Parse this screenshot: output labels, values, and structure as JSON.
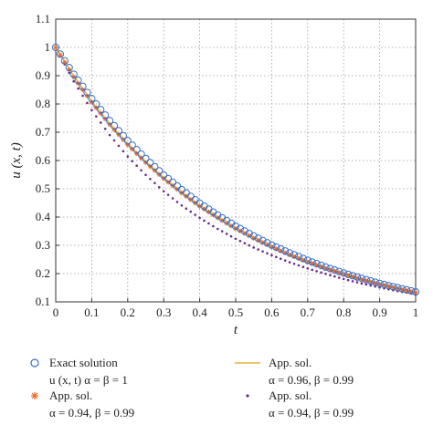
{
  "chart_data": {
    "type": "line",
    "xlabel": "t",
    "ylabel": "u (x, t)",
    "xlim": [
      0,
      1
    ],
    "ylim": [
      0.1,
      1.1
    ],
    "x_ticks": [
      "0",
      "0.1",
      "0.2",
      "0.3",
      "0.4",
      "0.5",
      "0.6",
      "0.7",
      "0.8",
      "0.9",
      "1"
    ],
    "y_ticks": [
      "0.1",
      "0.2",
      "0.3",
      "0.4",
      "0.5",
      "0.6",
      "0.7",
      "0.8",
      "0.9",
      "1",
      "1.1"
    ],
    "grid": true,
    "legend_position": "bottom",
    "x": [
      0,
      0.05,
      0.1,
      0.15,
      0.2,
      0.25,
      0.3,
      0.35,
      0.4,
      0.45,
      0.5,
      0.55,
      0.6,
      0.65,
      0.7,
      0.75,
      0.8,
      0.85,
      0.9,
      0.95,
      1
    ],
    "series": [
      {
        "name": "Exact solution",
        "name_line2": "u (x, t) α = β = 1",
        "marker": "circle",
        "color": "#3a6fc4",
        "values": [
          1.0,
          0.905,
          0.819,
          0.741,
          0.67,
          0.607,
          0.549,
          0.497,
          0.449,
          0.407,
          0.368,
          0.333,
          0.301,
          0.273,
          0.247,
          0.223,
          0.202,
          0.183,
          0.165,
          0.15,
          0.135
        ]
      },
      {
        "name": "App. sol.",
        "name_line2": "α = 0.94, β = 0.99",
        "marker": "asterisk",
        "color": "#e8692a",
        "values": [
          1.0,
          0.895,
          0.806,
          0.727,
          0.656,
          0.593,
          0.536,
          0.485,
          0.438,
          0.397,
          0.359,
          0.325,
          0.294,
          0.266,
          0.241,
          0.218,
          0.198,
          0.179,
          0.162,
          0.147,
          0.133
        ]
      },
      {
        "name": "App. sol.",
        "name_line2": "α = 0.96, β = 0.99",
        "marker": "line",
        "color": "#e9b43a",
        "values": [
          1.0,
          0.899,
          0.81,
          0.731,
          0.66,
          0.597,
          0.54,
          0.489,
          0.442,
          0.4,
          0.362,
          0.328,
          0.297,
          0.269,
          0.244,
          0.221,
          0.2,
          0.181,
          0.164,
          0.149,
          0.134
        ]
      },
      {
        "name": "App. sol.",
        "name_line2": "α = 0.94, β = 0.99",
        "marker": "dot",
        "color": "#6a2a8f",
        "values": [
          1.0,
          0.88,
          0.778,
          0.69,
          0.614,
          0.549,
          0.491,
          0.441,
          0.397,
          0.358,
          0.323,
          0.292,
          0.265,
          0.24,
          0.218,
          0.199,
          0.181,
          0.165,
          0.151,
          0.138,
          0.127
        ]
      }
    ]
  }
}
